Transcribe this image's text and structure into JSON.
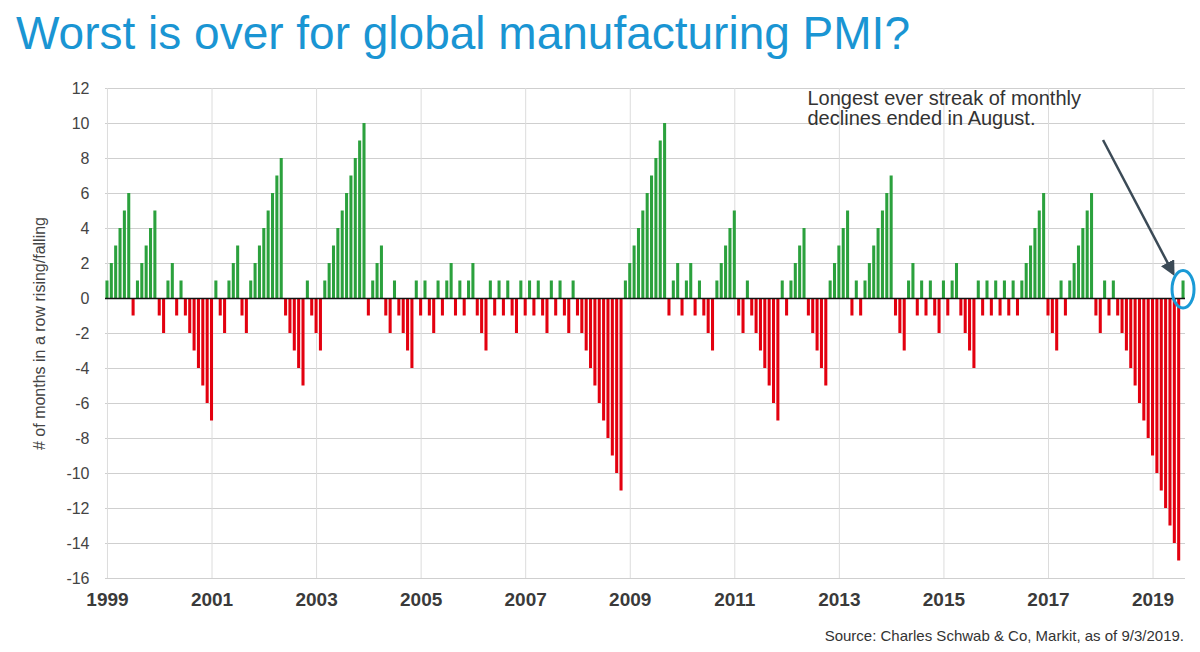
{
  "chart_data": {
    "type": "bar",
    "title": "Worst is over for global manufacturing PMI?",
    "ylabel": "# of months in a row rising/falling",
    "annotations": [
      "Longest ever streak of monthly declines ended in August."
    ],
    "caption": "Source: Charles Schwab & Co, Markit, as of 9/3/2019.",
    "categories": [
      "1999",
      null,
      null,
      null,
      null,
      null,
      null,
      null,
      null,
      null,
      null,
      null,
      null,
      null,
      null,
      null,
      null,
      null,
      null,
      null,
      null,
      null,
      null,
      null,
      "2001",
      null,
      null,
      null,
      null,
      null,
      null,
      null,
      null,
      null,
      null,
      null,
      null,
      null,
      null,
      null,
      null,
      null,
      null,
      null,
      null,
      null,
      null,
      null,
      "2003",
      null,
      null,
      null,
      null,
      null,
      null,
      null,
      null,
      null,
      null,
      null,
      null,
      null,
      null,
      null,
      null,
      null,
      null,
      null,
      null,
      null,
      null,
      null,
      "2005",
      null,
      null,
      null,
      null,
      null,
      null,
      null,
      null,
      null,
      null,
      null,
      null,
      null,
      null,
      null,
      null,
      null,
      null,
      null,
      null,
      null,
      null,
      null,
      "2007",
      null,
      null,
      null,
      null,
      null,
      null,
      null,
      null,
      null,
      null,
      null,
      null,
      null,
      null,
      null,
      null,
      null,
      null,
      null,
      null,
      null,
      null,
      null,
      "2009",
      null,
      null,
      null,
      null,
      null,
      null,
      null,
      null,
      null,
      null,
      null,
      null,
      null,
      null,
      null,
      null,
      null,
      null,
      null,
      null,
      null,
      null,
      null,
      "2011",
      null,
      null,
      null,
      null,
      null,
      null,
      null,
      null,
      null,
      null,
      null,
      null,
      null,
      null,
      null,
      null,
      null,
      null,
      null,
      null,
      null,
      null,
      null,
      "2013",
      null,
      null,
      null,
      null,
      null,
      null,
      null,
      null,
      null,
      null,
      null,
      null,
      null,
      null,
      null,
      null,
      null,
      null,
      null,
      null,
      null,
      null,
      null,
      "2015",
      null,
      null,
      null,
      null,
      null,
      null,
      null,
      null,
      null,
      null,
      null,
      null,
      null,
      null,
      null,
      null,
      null,
      null,
      null,
      null,
      null,
      null,
      null,
      "2017",
      null,
      null,
      null,
      null,
      null,
      null,
      null,
      null,
      null,
      null,
      null,
      null,
      null,
      null,
      null,
      null,
      null,
      null,
      null,
      null,
      null,
      null,
      null,
      "2019",
      null,
      null,
      null,
      null,
      null,
      null,
      null
    ],
    "values": [
      1,
      2,
      3,
      4,
      5,
      6,
      -1,
      1,
      2,
      3,
      4,
      5,
      -1,
      -2,
      1,
      2,
      -1,
      1,
      -1,
      -2,
      -3,
      -4,
      -5,
      -6,
      -7,
      1,
      -1,
      -2,
      1,
      2,
      3,
      -1,
      -2,
      1,
      2,
      3,
      4,
      5,
      6,
      7,
      8,
      -1,
      -2,
      -3,
      -4,
      -5,
      1,
      -1,
      -2,
      -3,
      1,
      2,
      3,
      4,
      5,
      6,
      7,
      8,
      9,
      10,
      -1,
      1,
      2,
      3,
      -1,
      -2,
      1,
      -1,
      -2,
      -3,
      -4,
      1,
      -1,
      1,
      -1,
      -2,
      1,
      -1,
      1,
      2,
      -1,
      1,
      -1,
      1,
      2,
      -1,
      -2,
      -3,
      1,
      -1,
      1,
      -1,
      1,
      -1,
      -2,
      1,
      -1,
      1,
      -1,
      1,
      -1,
      -2,
      1,
      -1,
      1,
      -1,
      -2,
      1,
      -1,
      -2,
      -3,
      -4,
      -5,
      -6,
      -7,
      -8,
      -9,
      -10,
      -11,
      1,
      2,
      3,
      4,
      5,
      6,
      7,
      8,
      9,
      10,
      -1,
      1,
      2,
      -1,
      1,
      2,
      -1,
      1,
      -1,
      -2,
      -3,
      1,
      2,
      3,
      4,
      5,
      -1,
      -2,
      1,
      -1,
      -2,
      -3,
      -4,
      -5,
      -6,
      -7,
      1,
      -1,
      1,
      2,
      3,
      4,
      -1,
      -2,
      -3,
      -4,
      -5,
      1,
      2,
      3,
      4,
      5,
      -1,
      1,
      -1,
      1,
      2,
      3,
      4,
      5,
      6,
      7,
      -1,
      -2,
      -3,
      1,
      2,
      -1,
      1,
      -1,
      1,
      -1,
      -2,
      1,
      -1,
      1,
      2,
      -1,
      -2,
      -3,
      -4,
      1,
      -1,
      1,
      -1,
      1,
      -1,
      1,
      -1,
      1,
      -1,
      1,
      2,
      3,
      4,
      5,
      6,
      -1,
      -2,
      -3,
      1,
      -1,
      1,
      2,
      3,
      4,
      5,
      6,
      -1,
      -2,
      1,
      -1,
      1,
      -1,
      -2,
      -3,
      -4,
      -5,
      -6,
      -7,
      -8,
      -9,
      -10,
      -11,
      -12,
      -13,
      -14,
      -15,
      1
    ],
    "colors": [
      "#2ba13d",
      "#2ba13d",
      "#2ba13d",
      "#2ba13d",
      "#2ba13d",
      "#2ba13d",
      "#e3000f",
      "#2ba13d",
      "#2ba13d",
      "#2ba13d",
      "#2ba13d",
      "#2ba13d",
      "#e3000f",
      "#e3000f",
      "#2ba13d",
      "#2ba13d",
      "#e3000f",
      "#2ba13d",
      "#e3000f",
      "#e3000f",
      "#e3000f",
      "#e3000f",
      "#e3000f",
      "#e3000f",
      "#e3000f",
      "#2ba13d",
      "#e3000f",
      "#e3000f",
      "#2ba13d",
      "#2ba13d",
      "#2ba13d",
      "#e3000f",
      "#e3000f",
      "#2ba13d",
      "#2ba13d",
      "#2ba13d",
      "#2ba13d",
      "#2ba13d",
      "#2ba13d",
      "#2ba13d",
      "#2ba13d",
      "#e3000f",
      "#e3000f",
      "#e3000f",
      "#e3000f",
      "#e3000f",
      "#2ba13d",
      "#e3000f",
      "#e3000f",
      "#e3000f",
      "#2ba13d",
      "#2ba13d",
      "#2ba13d",
      "#2ba13d",
      "#2ba13d",
      "#2ba13d",
      "#2ba13d",
      "#2ba13d",
      "#2ba13d",
      "#2ba13d",
      "#e3000f",
      "#2ba13d",
      "#2ba13d",
      "#2ba13d",
      "#e3000f",
      "#e3000f",
      "#2ba13d",
      "#e3000f",
      "#e3000f",
      "#e3000f",
      "#e3000f",
      "#2ba13d",
      "#e3000f",
      "#2ba13d",
      "#e3000f",
      "#e3000f",
      "#2ba13d",
      "#e3000f",
      "#2ba13d",
      "#2ba13d",
      "#e3000f",
      "#2ba13d",
      "#e3000f",
      "#2ba13d",
      "#2ba13d",
      "#e3000f",
      "#e3000f",
      "#e3000f",
      "#2ba13d",
      "#e3000f",
      "#2ba13d",
      "#e3000f",
      "#2ba13d",
      "#e3000f",
      "#e3000f",
      "#2ba13d",
      "#e3000f",
      "#2ba13d",
      "#e3000f",
      "#2ba13d",
      "#e3000f",
      "#e3000f",
      "#2ba13d",
      "#e3000f",
      "#2ba13d",
      "#e3000f",
      "#e3000f",
      "#2ba13d",
      "#e3000f",
      "#e3000f",
      "#e3000f",
      "#e3000f",
      "#e3000f",
      "#e3000f",
      "#e3000f",
      "#e3000f",
      "#e3000f",
      "#e3000f",
      "#e3000f",
      "#2ba13d",
      "#2ba13d",
      "#2ba13d",
      "#2ba13d",
      "#2ba13d",
      "#2ba13d",
      "#2ba13d",
      "#2ba13d",
      "#2ba13d",
      "#2ba13d",
      "#e3000f",
      "#2ba13d",
      "#2ba13d",
      "#e3000f",
      "#2ba13d",
      "#2ba13d",
      "#e3000f",
      "#2ba13d",
      "#e3000f",
      "#e3000f",
      "#e3000f",
      "#2ba13d",
      "#2ba13d",
      "#2ba13d",
      "#2ba13d",
      "#2ba13d",
      "#e3000f",
      "#e3000f",
      "#2ba13d",
      "#e3000f",
      "#e3000f",
      "#e3000f",
      "#e3000f",
      "#e3000f",
      "#e3000f",
      "#e3000f",
      "#2ba13d",
      "#e3000f",
      "#2ba13d",
      "#2ba13d",
      "#2ba13d",
      "#2ba13d",
      "#e3000f",
      "#e3000f",
      "#e3000f",
      "#e3000f",
      "#e3000f",
      "#2ba13d",
      "#2ba13d",
      "#2ba13d",
      "#2ba13d",
      "#2ba13d",
      "#e3000f",
      "#2ba13d",
      "#e3000f",
      "#2ba13d",
      "#2ba13d",
      "#2ba13d",
      "#2ba13d",
      "#2ba13d",
      "#2ba13d",
      "#2ba13d",
      "#e3000f",
      "#e3000f",
      "#e3000f",
      "#2ba13d",
      "#2ba13d",
      "#e3000f",
      "#2ba13d",
      "#e3000f",
      "#2ba13d",
      "#e3000f",
      "#e3000f",
      "#2ba13d",
      "#e3000f",
      "#2ba13d",
      "#2ba13d",
      "#e3000f",
      "#e3000f",
      "#e3000f",
      "#e3000f",
      "#2ba13d",
      "#e3000f",
      "#2ba13d",
      "#e3000f",
      "#2ba13d",
      "#e3000f",
      "#2ba13d",
      "#e3000f",
      "#2ba13d",
      "#e3000f",
      "#2ba13d",
      "#2ba13d",
      "#2ba13d",
      "#2ba13d",
      "#2ba13d",
      "#2ba13d",
      "#e3000f",
      "#e3000f",
      "#e3000f",
      "#2ba13d",
      "#e3000f",
      "#2ba13d",
      "#2ba13d",
      "#2ba13d",
      "#2ba13d",
      "#2ba13d",
      "#2ba13d",
      "#e3000f",
      "#e3000f",
      "#2ba13d",
      "#e3000f",
      "#2ba13d",
      "#e3000f",
      "#e3000f",
      "#e3000f",
      "#e3000f",
      "#e3000f",
      "#e3000f",
      "#e3000f",
      "#e3000f",
      "#e3000f",
      "#e3000f",
      "#e3000f",
      "#e3000f",
      "#e3000f",
      "#e3000f",
      "#e3000f",
      "#2ba13d"
    ],
    "ylim": [
      -16,
      12
    ],
    "yticks": [
      -16,
      -14,
      -12,
      -10,
      -8,
      -6,
      -4,
      -2,
      0,
      2,
      4,
      6,
      8,
      10,
      12
    ],
    "grid": true
  }
}
